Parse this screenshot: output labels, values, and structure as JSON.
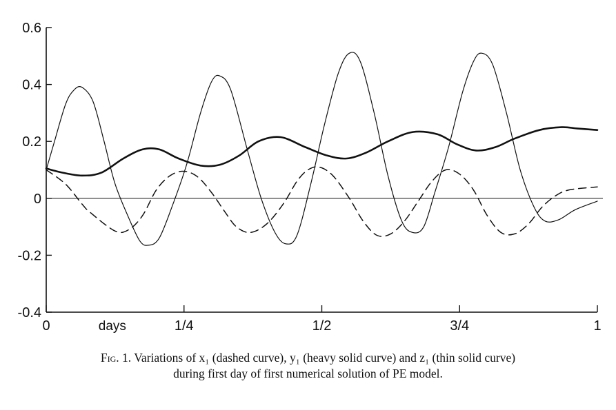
{
  "chart_data": {
    "type": "line",
    "xlabel": "days",
    "ylim": [
      -0.4,
      0.6
    ],
    "yticks": [
      -0.4,
      -0.2,
      0,
      0.2,
      0.4,
      0.6
    ],
    "ytick_labels": [
      "-0.4",
      "-0.2",
      "0",
      "0.2",
      "0.4",
      "0.6"
    ],
    "xlim": [
      0,
      1
    ],
    "xticks": [
      0,
      0.25,
      0.5,
      0.75,
      1
    ],
    "xtick_labels": [
      "0",
      "1/4",
      "1/2",
      "3/4",
      "1"
    ],
    "zero_line": true,
    "grid": false,
    "series": [
      {
        "style": "dashed",
        "color": "#111111",
        "points": [
          [
            0,
            0.1
          ],
          [
            0.035,
            0.05
          ],
          [
            0.065,
            -0.02
          ],
          [
            0.08,
            -0.05
          ],
          [
            0.125,
            -0.115
          ],
          [
            0.15,
            -0.11
          ],
          [
            0.175,
            -0.06
          ],
          [
            0.2,
            0.03
          ],
          [
            0.225,
            0.08
          ],
          [
            0.25,
            0.095
          ],
          [
            0.275,
            0.075
          ],
          [
            0.3,
            0.02
          ],
          [
            0.325,
            -0.05
          ],
          [
            0.345,
            -0.1
          ],
          [
            0.37,
            -0.12
          ],
          [
            0.4,
            -0.09
          ],
          [
            0.43,
            -0.02
          ],
          [
            0.455,
            0.06
          ],
          [
            0.475,
            0.1
          ],
          [
            0.495,
            0.11
          ],
          [
            0.52,
            0.08
          ],
          [
            0.55,
            0.0
          ],
          [
            0.575,
            -0.08
          ],
          [
            0.6,
            -0.13
          ],
          [
            0.625,
            -0.125
          ],
          [
            0.65,
            -0.08
          ],
          [
            0.675,
            -0.01
          ],
          [
            0.7,
            0.06
          ],
          [
            0.725,
            0.1
          ],
          [
            0.75,
            0.085
          ],
          [
            0.775,
            0.03
          ],
          [
            0.8,
            -0.06
          ],
          [
            0.825,
            -0.12
          ],
          [
            0.85,
            -0.125
          ],
          [
            0.875,
            -0.09
          ],
          [
            0.9,
            -0.03
          ],
          [
            0.925,
            0.01
          ],
          [
            0.95,
            0.03
          ],
          [
            1.0,
            0.04
          ]
        ]
      },
      {
        "style": "heavy solid",
        "color": "#111111",
        "points": [
          [
            0,
            0.105
          ],
          [
            0.03,
            0.09
          ],
          [
            0.065,
            0.08
          ],
          [
            0.1,
            0.09
          ],
          [
            0.14,
            0.14
          ],
          [
            0.175,
            0.172
          ],
          [
            0.205,
            0.172
          ],
          [
            0.24,
            0.14
          ],
          [
            0.28,
            0.115
          ],
          [
            0.315,
            0.118
          ],
          [
            0.35,
            0.15
          ],
          [
            0.385,
            0.2
          ],
          [
            0.425,
            0.215
          ],
          [
            0.47,
            0.18
          ],
          [
            0.51,
            0.15
          ],
          [
            0.545,
            0.14
          ],
          [
            0.58,
            0.16
          ],
          [
            0.62,
            0.2
          ],
          [
            0.665,
            0.233
          ],
          [
            0.71,
            0.225
          ],
          [
            0.745,
            0.19
          ],
          [
            0.78,
            0.168
          ],
          [
            0.815,
            0.18
          ],
          [
            0.85,
            0.21
          ],
          [
            0.895,
            0.24
          ],
          [
            0.935,
            0.25
          ],
          [
            0.965,
            0.245
          ],
          [
            1.0,
            0.24
          ]
        ]
      },
      {
        "style": "thin solid",
        "color": "#111111",
        "points": [
          [
            0,
            0.1
          ],
          [
            0.015,
            0.2
          ],
          [
            0.035,
            0.33
          ],
          [
            0.05,
            0.38
          ],
          [
            0.065,
            0.39
          ],
          [
            0.085,
            0.34
          ],
          [
            0.105,
            0.2
          ],
          [
            0.125,
            0.05
          ],
          [
            0.15,
            -0.07
          ],
          [
            0.17,
            -0.15
          ],
          [
            0.185,
            -0.165
          ],
          [
            0.205,
            -0.14
          ],
          [
            0.23,
            -0.02
          ],
          [
            0.255,
            0.12
          ],
          [
            0.28,
            0.3
          ],
          [
            0.3,
            0.41
          ],
          [
            0.315,
            0.43
          ],
          [
            0.335,
            0.38
          ],
          [
            0.365,
            0.17
          ],
          [
            0.39,
            0.0
          ],
          [
            0.415,
            -0.12
          ],
          [
            0.435,
            -0.16
          ],
          [
            0.455,
            -0.13
          ],
          [
            0.48,
            0.05
          ],
          [
            0.505,
            0.26
          ],
          [
            0.53,
            0.44
          ],
          [
            0.55,
            0.51
          ],
          [
            0.57,
            0.48
          ],
          [
            0.595,
            0.3
          ],
          [
            0.62,
            0.08
          ],
          [
            0.645,
            -0.08
          ],
          [
            0.665,
            -0.12
          ],
          [
            0.685,
            -0.1
          ],
          [
            0.705,
            0.02
          ],
          [
            0.73,
            0.18
          ],
          [
            0.755,
            0.37
          ],
          [
            0.775,
            0.48
          ],
          [
            0.79,
            0.51
          ],
          [
            0.81,
            0.47
          ],
          [
            0.835,
            0.3
          ],
          [
            0.86,
            0.1
          ],
          [
            0.885,
            -0.03
          ],
          [
            0.905,
            -0.08
          ],
          [
            0.93,
            -0.075
          ],
          [
            0.96,
            -0.04
          ],
          [
            1.0,
            -0.01
          ]
        ]
      }
    ]
  },
  "caption": {
    "prefix": "Fig",
    "line1": ". 1. Variations of x₁ (dashed curve), y₁ (heavy solid curve) and z₁ (thin solid curve)",
    "line2": "during first day of first numerical solution of PE model."
  }
}
